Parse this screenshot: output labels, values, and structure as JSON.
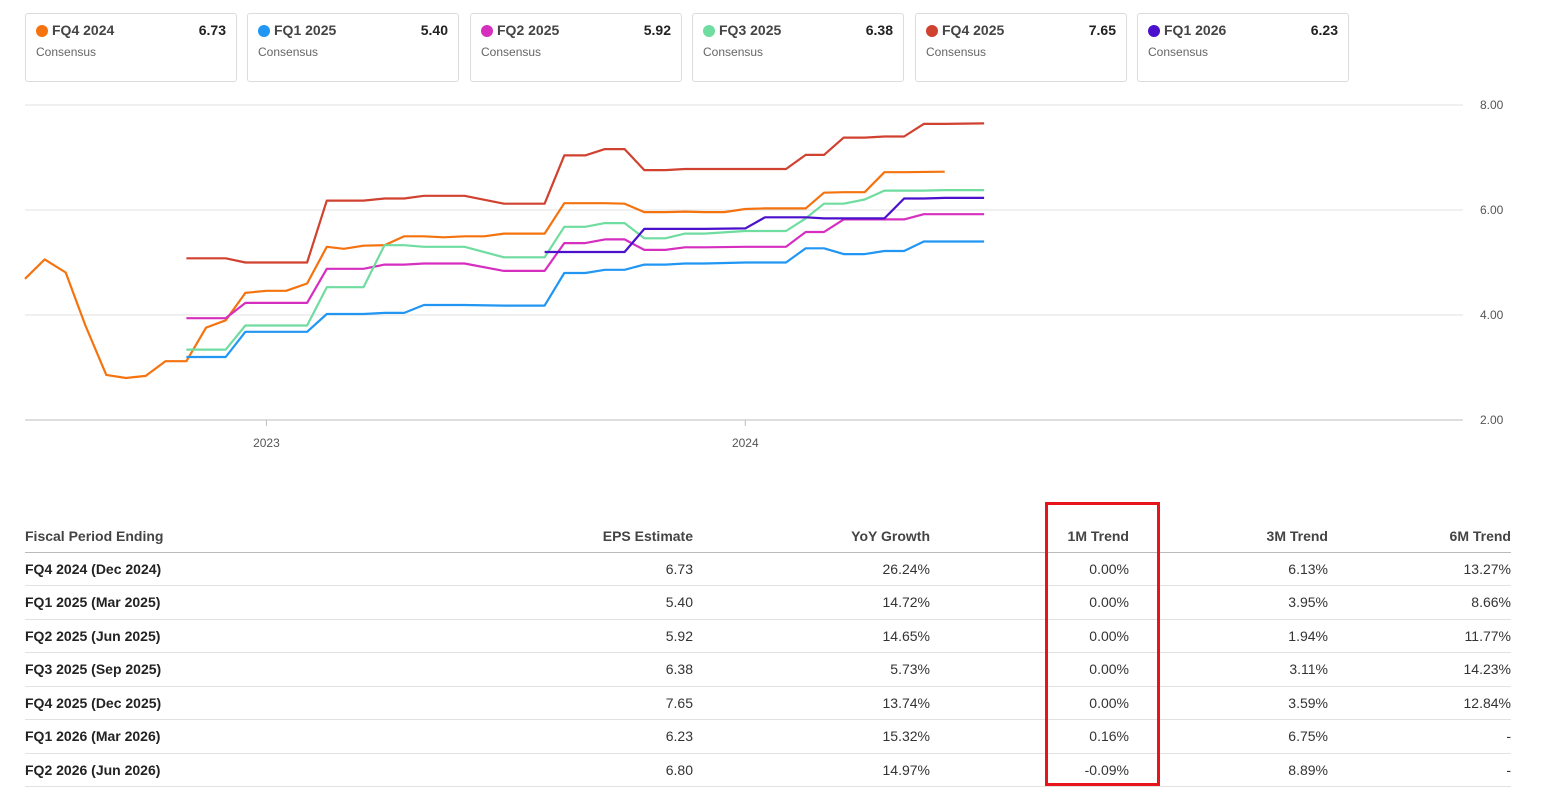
{
  "legend": [
    {
      "name": "FQ4 2024",
      "value": "6.73",
      "sub": "Consensus",
      "color": "#f4730f"
    },
    {
      "name": "FQ1 2025",
      "value": "5.40",
      "sub": "Consensus",
      "color": "#2196f3"
    },
    {
      "name": "FQ2 2025",
      "value": "5.92",
      "sub": "Consensus",
      "color": "#d62fc0"
    },
    {
      "name": "FQ3 2025",
      "value": "6.38",
      "sub": "Consensus",
      "color": "#6fdca0"
    },
    {
      "name": "FQ4 2025",
      "value": "7.65",
      "sub": "Consensus",
      "color": "#d0412f"
    },
    {
      "name": "FQ1 2026",
      "value": "6.23",
      "sub": "Consensus",
      "color": "#4a10cc"
    }
  ],
  "chart_data": {
    "type": "line",
    "x_ticks": [
      "2023",
      "2024"
    ],
    "y_ticks": [
      "2.00",
      "4.00",
      "6.00",
      "8.00"
    ],
    "ylim": [
      2,
      8
    ],
    "grid": true,
    "x_domain": [
      "2022-07",
      "2025-07"
    ],
    "series": [
      {
        "name": "FQ4 2024",
        "color": "#f4730f",
        "points": [
          [
            "2022-07-01",
            4.69
          ],
          [
            "2022-07-16",
            5.06
          ],
          [
            "2022-08-01",
            4.81
          ],
          [
            "2022-08-16",
            3.8
          ],
          [
            "2022-09-01",
            2.86
          ],
          [
            "2022-09-16",
            2.8
          ],
          [
            "2022-10-01",
            2.84
          ],
          [
            "2022-10-16",
            3.12
          ],
          [
            "2022-11-01",
            3.12
          ],
          [
            "2022-11-16",
            3.76
          ],
          [
            "2022-12-01",
            3.9
          ],
          [
            "2022-12-16",
            4.42
          ],
          [
            "2023-01-01",
            4.46
          ],
          [
            "2023-01-16",
            4.46
          ],
          [
            "2023-02-01",
            4.6
          ],
          [
            "2023-02-16",
            5.3
          ],
          [
            "2023-03-01",
            5.26
          ],
          [
            "2023-03-16",
            5.32
          ],
          [
            "2023-04-01",
            5.33
          ],
          [
            "2023-04-16",
            5.5
          ],
          [
            "2023-05-01",
            5.5
          ],
          [
            "2023-05-16",
            5.48
          ],
          [
            "2023-06-01",
            5.5
          ],
          [
            "2023-06-16",
            5.5
          ],
          [
            "2023-07-01",
            5.55
          ],
          [
            "2023-07-16",
            5.55
          ],
          [
            "2023-08-01",
            5.55
          ],
          [
            "2023-08-16",
            6.13
          ],
          [
            "2023-09-01",
            6.13
          ],
          [
            "2023-09-16",
            6.13
          ],
          [
            "2023-10-01",
            6.12
          ],
          [
            "2023-10-16",
            5.96
          ],
          [
            "2023-11-01",
            5.96
          ],
          [
            "2023-11-16",
            5.97
          ],
          [
            "2023-12-01",
            5.96
          ],
          [
            "2023-12-16",
            5.96
          ],
          [
            "2024-01-01",
            6.02
          ],
          [
            "2024-01-16",
            6.03
          ],
          [
            "2024-02-01",
            6.03
          ],
          [
            "2024-02-16",
            6.03
          ],
          [
            "2024-03-01",
            6.33
          ],
          [
            "2024-03-16",
            6.34
          ],
          [
            "2024-04-01",
            6.34
          ],
          [
            "2024-04-16",
            6.72
          ],
          [
            "2024-05-01",
            6.72
          ],
          [
            "2024-06-01",
            6.73
          ]
        ]
      },
      {
        "name": "FQ1 2025",
        "color": "#2196f3",
        "points": [
          [
            "2022-11-01",
            3.2
          ],
          [
            "2022-12-01",
            3.2
          ],
          [
            "2022-12-16",
            3.68
          ],
          [
            "2023-01-01",
            3.68
          ],
          [
            "2023-02-01",
            3.68
          ],
          [
            "2023-02-16",
            4.02
          ],
          [
            "2023-03-16",
            4.02
          ],
          [
            "2023-04-01",
            4.04
          ],
          [
            "2023-04-16",
            4.04
          ],
          [
            "2023-05-01",
            4.19
          ],
          [
            "2023-05-16",
            4.19
          ],
          [
            "2023-06-01",
            4.19
          ],
          [
            "2023-07-01",
            4.18
          ],
          [
            "2023-08-01",
            4.18
          ],
          [
            "2023-08-16",
            4.8
          ],
          [
            "2023-09-01",
            4.8
          ],
          [
            "2023-09-16",
            4.86
          ],
          [
            "2023-10-01",
            4.86
          ],
          [
            "2023-10-16",
            4.96
          ],
          [
            "2023-11-01",
            4.96
          ],
          [
            "2023-11-16",
            4.98
          ],
          [
            "2023-12-01",
            4.98
          ],
          [
            "2024-01-01",
            5.0
          ],
          [
            "2024-01-16",
            5.0
          ],
          [
            "2024-02-01",
            5.0
          ],
          [
            "2024-02-16",
            5.27
          ],
          [
            "2024-03-01",
            5.27
          ],
          [
            "2024-03-16",
            5.16
          ],
          [
            "2024-04-01",
            5.16
          ],
          [
            "2024-04-16",
            5.22
          ],
          [
            "2024-05-01",
            5.22
          ],
          [
            "2024-05-16",
            5.4
          ],
          [
            "2024-06-01",
            5.4
          ],
          [
            "2024-07-01",
            5.4
          ]
        ]
      },
      {
        "name": "FQ2 2025",
        "color": "#d62fc0",
        "points": [
          [
            "2022-11-01",
            3.94
          ],
          [
            "2022-12-01",
            3.94
          ],
          [
            "2022-12-16",
            4.23
          ],
          [
            "2023-01-01",
            4.23
          ],
          [
            "2023-02-01",
            4.23
          ],
          [
            "2023-02-16",
            4.88
          ],
          [
            "2023-03-16",
            4.88
          ],
          [
            "2023-04-01",
            4.96
          ],
          [
            "2023-04-16",
            4.96
          ],
          [
            "2023-05-01",
            4.98
          ],
          [
            "2023-05-16",
            4.98
          ],
          [
            "2023-06-01",
            4.98
          ],
          [
            "2023-07-01",
            4.84
          ],
          [
            "2023-08-01",
            4.84
          ],
          [
            "2023-08-16",
            5.37
          ],
          [
            "2023-09-01",
            5.37
          ],
          [
            "2023-09-16",
            5.44
          ],
          [
            "2023-10-01",
            5.44
          ],
          [
            "2023-10-16",
            5.24
          ],
          [
            "2023-11-01",
            5.24
          ],
          [
            "2023-11-16",
            5.29
          ],
          [
            "2023-12-01",
            5.29
          ],
          [
            "2024-01-01",
            5.3
          ],
          [
            "2024-01-16",
            5.3
          ],
          [
            "2024-02-01",
            5.3
          ],
          [
            "2024-02-16",
            5.58
          ],
          [
            "2024-03-01",
            5.58
          ],
          [
            "2024-03-16",
            5.82
          ],
          [
            "2024-04-01",
            5.82
          ],
          [
            "2024-04-16",
            5.82
          ],
          [
            "2024-05-01",
            5.82
          ],
          [
            "2024-05-16",
            5.92
          ],
          [
            "2024-06-01",
            5.92
          ],
          [
            "2024-07-01",
            5.92
          ]
        ]
      },
      {
        "name": "FQ3 2025",
        "color": "#6fdca0",
        "points": [
          [
            "2022-11-01",
            3.34
          ],
          [
            "2022-12-01",
            3.34
          ],
          [
            "2022-12-16",
            3.8
          ],
          [
            "2023-01-01",
            3.8
          ],
          [
            "2023-02-01",
            3.8
          ],
          [
            "2023-02-16",
            4.53
          ],
          [
            "2023-03-16",
            4.53
          ],
          [
            "2023-04-01",
            5.33
          ],
          [
            "2023-04-16",
            5.33
          ],
          [
            "2023-05-01",
            5.3
          ],
          [
            "2023-05-16",
            5.3
          ],
          [
            "2023-06-01",
            5.3
          ],
          [
            "2023-07-01",
            5.1
          ],
          [
            "2023-08-01",
            5.1
          ],
          [
            "2023-08-16",
            5.68
          ],
          [
            "2023-09-01",
            5.68
          ],
          [
            "2023-09-16",
            5.75
          ],
          [
            "2023-10-01",
            5.75
          ],
          [
            "2023-10-16",
            5.46
          ],
          [
            "2023-11-01",
            5.46
          ],
          [
            "2023-11-16",
            5.55
          ],
          [
            "2023-12-01",
            5.55
          ],
          [
            "2024-01-01",
            5.6
          ],
          [
            "2024-01-16",
            5.6
          ],
          [
            "2024-02-01",
            5.6
          ],
          [
            "2024-02-16",
            5.84
          ],
          [
            "2024-03-01",
            6.12
          ],
          [
            "2024-03-16",
            6.12
          ],
          [
            "2024-04-01",
            6.2
          ],
          [
            "2024-04-16",
            6.37
          ],
          [
            "2024-05-01",
            6.37
          ],
          [
            "2024-05-16",
            6.37
          ],
          [
            "2024-06-01",
            6.38
          ],
          [
            "2024-07-01",
            6.38
          ]
        ]
      },
      {
        "name": "FQ4 2025",
        "color": "#d0412f",
        "points": [
          [
            "2022-11-01",
            5.08
          ],
          [
            "2022-12-01",
            5.08
          ],
          [
            "2022-12-16",
            5.0
          ],
          [
            "2023-01-01",
            5.0
          ],
          [
            "2023-02-01",
            5.0
          ],
          [
            "2023-02-16",
            6.18
          ],
          [
            "2023-03-16",
            6.18
          ],
          [
            "2023-04-01",
            6.22
          ],
          [
            "2023-04-16",
            6.22
          ],
          [
            "2023-05-01",
            6.27
          ],
          [
            "2023-05-16",
            6.27
          ],
          [
            "2023-06-01",
            6.27
          ],
          [
            "2023-07-01",
            6.12
          ],
          [
            "2023-08-01",
            6.12
          ],
          [
            "2023-08-16",
            7.04
          ],
          [
            "2023-09-01",
            7.04
          ],
          [
            "2023-09-16",
            7.16
          ],
          [
            "2023-10-01",
            7.16
          ],
          [
            "2023-10-16",
            6.76
          ],
          [
            "2023-11-01",
            6.76
          ],
          [
            "2023-11-16",
            6.78
          ],
          [
            "2023-12-01",
            6.78
          ],
          [
            "2024-01-01",
            6.78
          ],
          [
            "2024-01-16",
            6.78
          ],
          [
            "2024-02-01",
            6.78
          ],
          [
            "2024-02-16",
            7.05
          ],
          [
            "2024-03-01",
            7.05
          ],
          [
            "2024-03-16",
            7.38
          ],
          [
            "2024-04-01",
            7.38
          ],
          [
            "2024-04-16",
            7.4
          ],
          [
            "2024-05-01",
            7.4
          ],
          [
            "2024-05-16",
            7.64
          ],
          [
            "2024-06-01",
            7.64
          ],
          [
            "2024-07-01",
            7.65
          ]
        ]
      },
      {
        "name": "FQ1 2026",
        "color": "#4a10cc",
        "points": [
          [
            "2023-08-01",
            5.2
          ],
          [
            "2023-09-01",
            5.2
          ],
          [
            "2023-10-01",
            5.2
          ],
          [
            "2023-10-16",
            5.64
          ],
          [
            "2023-11-01",
            5.64
          ],
          [
            "2023-12-01",
            5.64
          ],
          [
            "2024-01-01",
            5.65
          ],
          [
            "2024-01-16",
            5.86
          ],
          [
            "2024-02-01",
            5.86
          ],
          [
            "2024-02-16",
            5.86
          ],
          [
            "2024-03-01",
            5.84
          ],
          [
            "2024-03-16",
            5.84
          ],
          [
            "2024-04-01",
            5.84
          ],
          [
            "2024-04-16",
            5.84
          ],
          [
            "2024-05-01",
            6.22
          ],
          [
            "2024-05-16",
            6.22
          ],
          [
            "2024-06-01",
            6.23
          ],
          [
            "2024-07-01",
            6.23
          ]
        ]
      }
    ]
  },
  "table": {
    "headers": [
      "Fiscal Period Ending",
      "EPS Estimate",
      "YoY Growth",
      "1M Trend",
      "3M Trend",
      "6M Trend"
    ],
    "rows": [
      {
        "period": "FQ4 2024 (Dec 2024)",
        "eps": "6.73",
        "yoy": "26.24%",
        "m1": "0.00%",
        "m3": "6.13%",
        "m6": "13.27%"
      },
      {
        "period": "FQ1 2025 (Mar 2025)",
        "eps": "5.40",
        "yoy": "14.72%",
        "m1": "0.00%",
        "m3": "3.95%",
        "m6": "8.66%"
      },
      {
        "period": "FQ2 2025 (Jun 2025)",
        "eps": "5.92",
        "yoy": "14.65%",
        "m1": "0.00%",
        "m3": "1.94%",
        "m6": "11.77%"
      },
      {
        "period": "FQ3 2025 (Sep 2025)",
        "eps": "6.38",
        "yoy": "5.73%",
        "m1": "0.00%",
        "m3": "3.11%",
        "m6": "14.23%"
      },
      {
        "period": "FQ4 2025 (Dec 2025)",
        "eps": "7.65",
        "yoy": "13.74%",
        "m1": "0.00%",
        "m3": "3.59%",
        "m6": "12.84%"
      },
      {
        "period": "FQ1 2026 (Mar 2026)",
        "eps": "6.23",
        "yoy": "15.32%",
        "m1": "0.16%",
        "m3": "6.75%",
        "m6": "-"
      },
      {
        "period": "FQ2 2026 (Jun 2026)",
        "eps": "6.80",
        "yoy": "14.97%",
        "m1": "-0.09%",
        "m3": "8.89%",
        "m6": "-"
      }
    ]
  },
  "colors": {
    "positive": "#1c8a3c",
    "negative": "#c0392b",
    "highlight_box": "#e8141b"
  }
}
